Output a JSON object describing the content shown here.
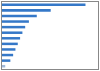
{
  "chart_data": {
    "type": "bar",
    "orientation": "horizontal",
    "categories": [
      null,
      null,
      null,
      null,
      null,
      null,
      null,
      null,
      null,
      null,
      null,
      null
    ],
    "values": [
      1800000,
      1050000,
      750000,
      580000,
      500000,
      440000,
      390000,
      340000,
      290000,
      240000,
      180000,
      70000
    ],
    "colors": [
      "#3578c8",
      "#3578c8",
      "#3578c8",
      "#3578c8",
      "#3578c8",
      "#3578c8",
      "#3578c8",
      "#3578c8",
      "#3578c8",
      "#3578c8",
      "#3578c8",
      "#a0b8d8"
    ],
    "xlim": [
      0,
      2070000
    ],
    "tick_labels": false,
    "grid": false
  }
}
